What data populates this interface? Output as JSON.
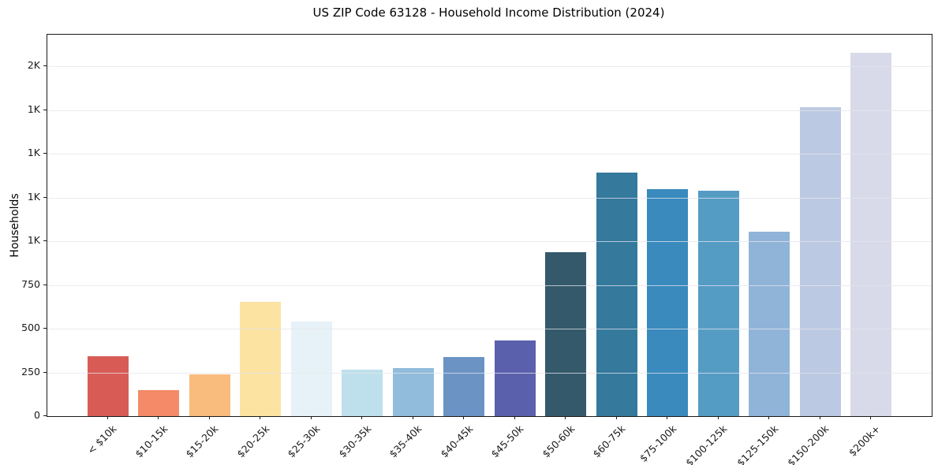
{
  "chart_data": {
    "type": "bar",
    "title": "US ZIP Code 63128 - Household Income Distribution (2024)",
    "xlabel": "",
    "ylabel": "Households",
    "categories": [
      "< $10k",
      "$10-15k",
      "$15-20k",
      "$20-25k",
      "$25-30k",
      "$30-35k",
      "$35-40k",
      "$40-45k",
      "$45-50k",
      "$50-60k",
      "$60-75k",
      "$75-100k",
      "$100-125k",
      "$125-150k",
      "$150-200k",
      "$200k+"
    ],
    "values": [
      341,
      147,
      240,
      654,
      541,
      265,
      273,
      337,
      431,
      938,
      1391,
      1296,
      1288,
      1056,
      1768,
      2076
    ],
    "bar_colors": [
      "#d85c55",
      "#f48a67",
      "#f9bc7d",
      "#fce3a2",
      "#e6f2f7",
      "#bee0ec",
      "#92bcdb",
      "#6b93c4",
      "#5b60ad",
      "#34596b",
      "#35799d",
      "#3a8abd",
      "#559cc5",
      "#90b4d8",
      "#bcc9e2",
      "#d8dae9"
    ],
    "ylim": [
      0,
      2180
    ],
    "yticks": [
      {
        "value": 0,
        "label": "0"
      },
      {
        "value": 250,
        "label": "250"
      },
      {
        "value": 500,
        "label": "500"
      },
      {
        "value": 750,
        "label": "750"
      },
      {
        "value": 1000,
        "label": "1K"
      },
      {
        "value": 1250,
        "label": "1K"
      },
      {
        "value": 1500,
        "label": "1K"
      },
      {
        "value": 1750,
        "label": "1K"
      },
      {
        "value": 2000,
        "label": "2K"
      }
    ],
    "grid": "horizontal",
    "legend_position": "none"
  },
  "colors": {
    "background": "#ffffff",
    "gridline": "#e4e4ec",
    "spine": "#1a1a1a",
    "text": "#1a1a1a"
  }
}
